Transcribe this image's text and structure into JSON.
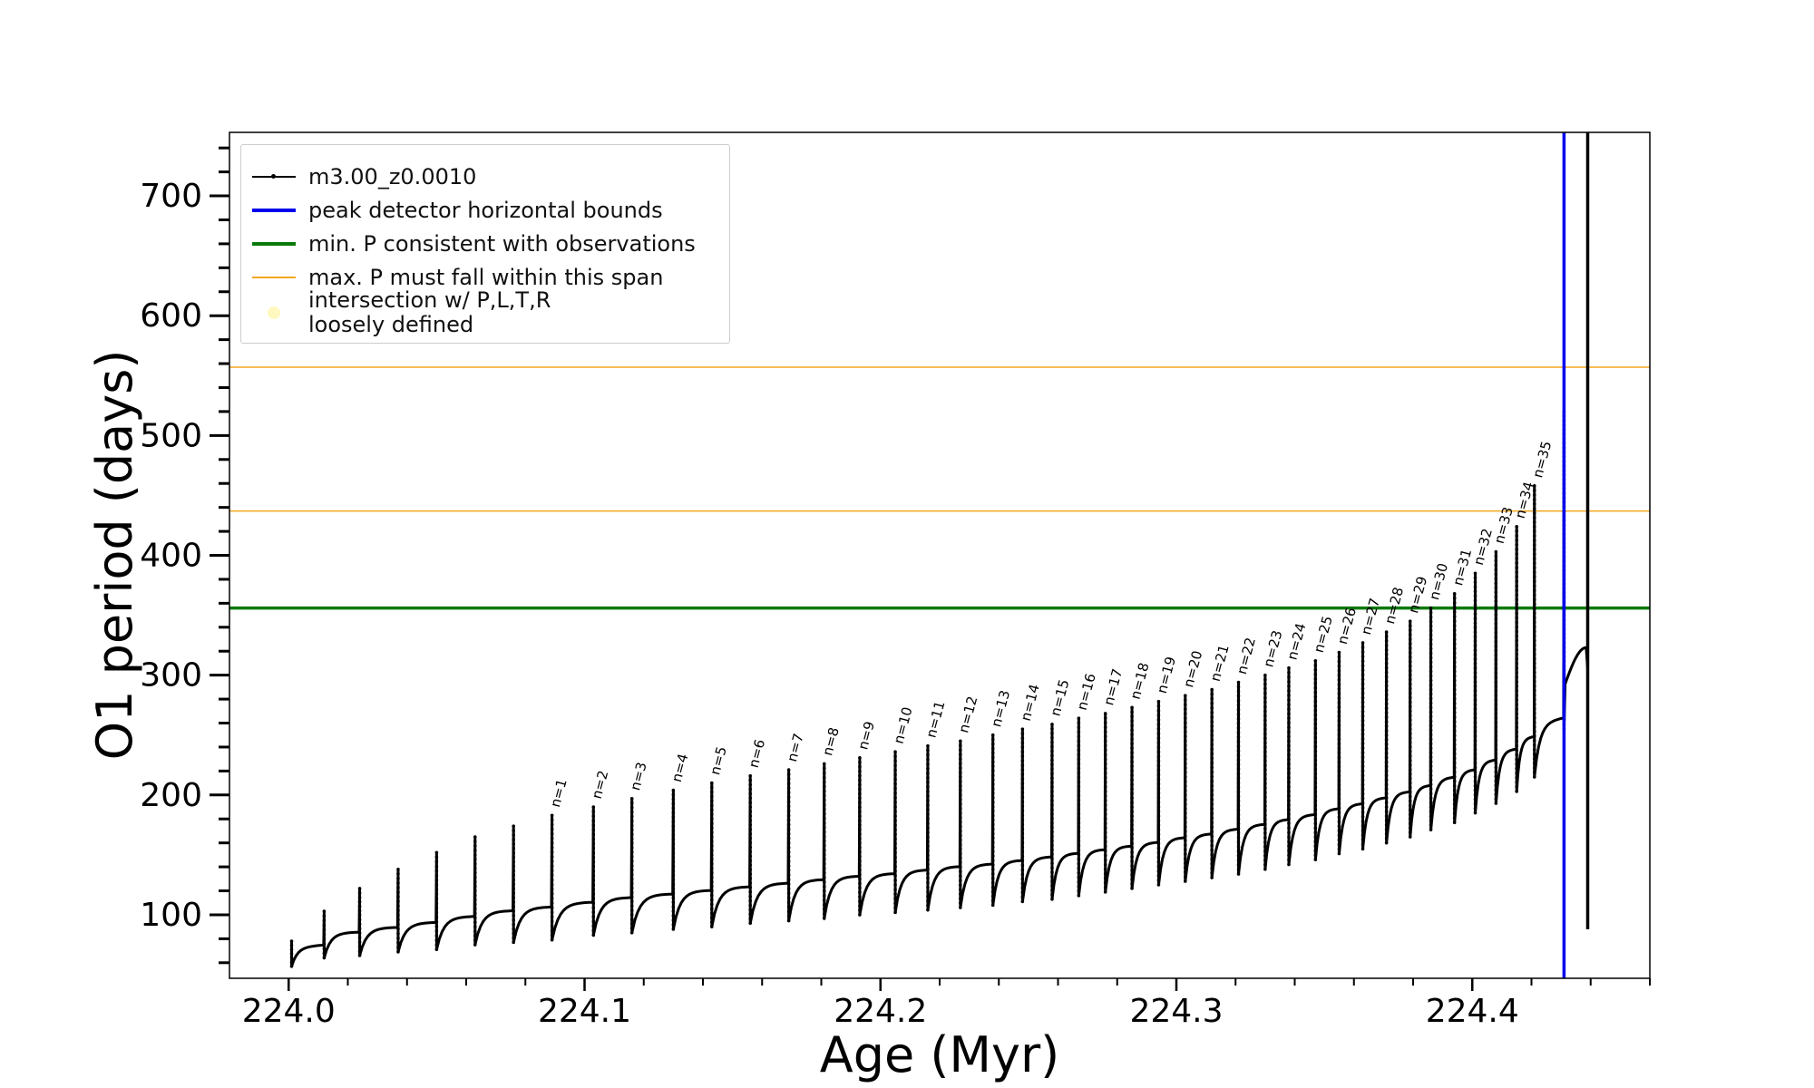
{
  "chart_data": {
    "type": "line",
    "xlabel": "Age (Myr)",
    "ylabel": "O1 period (days)",
    "xlim": [
      223.98,
      224.46
    ],
    "ylim": [
      47,
      753
    ],
    "x_ticks": [
      "224.0",
      "224.1",
      "224.2",
      "224.3",
      "224.4"
    ],
    "y_ticks": [
      "100",
      "200",
      "300",
      "400",
      "500",
      "600",
      "700"
    ],
    "grid": false,
    "legend_position": "top-left",
    "legend": [
      {
        "label": "m3.00_z0.0010",
        "style": "line-marker",
        "color": "#000000"
      },
      {
        "label": "peak detector horizontal bounds",
        "style": "line",
        "color": "#0000ee"
      },
      {
        "label": "min. P consistent with observations",
        "style": "line",
        "color": "#0a7a0a"
      },
      {
        "label": "max. P must fall within this span",
        "style": "thin-line",
        "color": "#f5a623"
      },
      {
        "label": "intersection w/ P,L,T,R\nloosely defined",
        "style": "dot",
        "color": "#fff8c0"
      }
    ],
    "horizontal_lines": [
      {
        "y": 557,
        "color": "#f5a623",
        "width": 1.5
      },
      {
        "y": 437,
        "color": "#f5a623",
        "width": 1.5
      },
      {
        "y": 356,
        "color": "#0a7a0a",
        "width": 3.5
      }
    ],
    "vertical_lines": [
      {
        "x": 224.431,
        "y_range": [
          47,
          753
        ],
        "color": "#0000ee",
        "width": 3.5
      }
    ],
    "series": [
      {
        "name": "m3.00_z0.0010",
        "color": "#000000",
        "pulses": [
          {
            "x": 224.001,
            "trough": 57,
            "base": 73,
            "peak": 78
          },
          {
            "x": 224.012,
            "trough": 64,
            "base": 85,
            "peak": 103
          },
          {
            "x": 224.024,
            "trough": 66,
            "base": 89,
            "peak": 122
          },
          {
            "x": 224.037,
            "trough": 69,
            "base": 93,
            "peak": 138
          },
          {
            "x": 224.05,
            "trough": 71,
            "base": 98,
            "peak": 152
          },
          {
            "x": 224.063,
            "trough": 75,
            "base": 103,
            "peak": 165
          },
          {
            "x": 224.076,
            "trough": 77,
            "base": 106,
            "peak": 174
          },
          {
            "x": 224.089,
            "trough": 79,
            "base": 110,
            "peak": 183,
            "label": "n=1"
          },
          {
            "x": 224.103,
            "trough": 83,
            "base": 114,
            "peak": 190,
            "label": "n=2"
          },
          {
            "x": 224.116,
            "trough": 85,
            "base": 117,
            "peak": 197,
            "label": "n=3"
          },
          {
            "x": 224.13,
            "trough": 88,
            "base": 120,
            "peak": 204,
            "label": "n=4"
          },
          {
            "x": 224.143,
            "trough": 90,
            "base": 123,
            "peak": 210,
            "label": "n=5"
          },
          {
            "x": 224.156,
            "trough": 93,
            "base": 126,
            "peak": 216,
            "label": "n=6"
          },
          {
            "x": 224.169,
            "trough": 95,
            "base": 129,
            "peak": 221,
            "label": "n=7"
          },
          {
            "x": 224.181,
            "trough": 97,
            "base": 132,
            "peak": 226,
            "label": "n=8"
          },
          {
            "x": 224.193,
            "trough": 100,
            "base": 134,
            "peak": 231,
            "label": "n=9"
          },
          {
            "x": 224.205,
            "trough": 102,
            "base": 137,
            "peak": 236,
            "label": "n=10"
          },
          {
            "x": 224.216,
            "trough": 104,
            "base": 140,
            "peak": 241,
            "label": "n=11"
          },
          {
            "x": 224.227,
            "trough": 106,
            "base": 142,
            "peak": 245,
            "label": "n=12"
          },
          {
            "x": 224.238,
            "trough": 108,
            "base": 145,
            "peak": 250,
            "label": "n=13"
          },
          {
            "x": 224.248,
            "trough": 111,
            "base": 148,
            "peak": 255,
            "label": "n=14"
          },
          {
            "x": 224.258,
            "trough": 113,
            "base": 151,
            "peak": 259,
            "label": "n=15"
          },
          {
            "x": 224.267,
            "trough": 116,
            "base": 154,
            "peak": 264,
            "label": "n=16"
          },
          {
            "x": 224.276,
            "trough": 119,
            "base": 157,
            "peak": 268,
            "label": "n=17"
          },
          {
            "x": 224.285,
            "trough": 122,
            "base": 160,
            "peak": 273,
            "label": "n=18"
          },
          {
            "x": 224.294,
            "trough": 125,
            "base": 164,
            "peak": 278,
            "label": "n=19"
          },
          {
            "x": 224.303,
            "trough": 128,
            "base": 167,
            "peak": 283,
            "label": "n=20"
          },
          {
            "x": 224.312,
            "trough": 131,
            "base": 171,
            "peak": 288,
            "label": "n=21"
          },
          {
            "x": 224.321,
            "trough": 134,
            "base": 175,
            "peak": 294,
            "label": "n=22"
          },
          {
            "x": 224.33,
            "trough": 138,
            "base": 179,
            "peak": 300,
            "label": "n=23"
          },
          {
            "x": 224.338,
            "trough": 142,
            "base": 183,
            "peak": 306,
            "label": "n=24"
          },
          {
            "x": 224.347,
            "trough": 146,
            "base": 188,
            "peak": 312,
            "label": "n=25"
          },
          {
            "x": 224.355,
            "trough": 151,
            "base": 192,
            "peak": 319,
            "label": "n=26"
          },
          {
            "x": 224.363,
            "trough": 155,
            "base": 197,
            "peak": 327,
            "label": "n=27"
          },
          {
            "x": 224.371,
            "trough": 160,
            "base": 202,
            "peak": 336,
            "label": "n=28"
          },
          {
            "x": 224.379,
            "trough": 165,
            "base": 207,
            "peak": 345,
            "label": "n=29"
          },
          {
            "x": 224.386,
            "trough": 171,
            "base": 214,
            "peak": 356,
            "label": "n=30"
          },
          {
            "x": 224.394,
            "trough": 177,
            "base": 220,
            "peak": 368,
            "label": "n=31"
          },
          {
            "x": 224.401,
            "trough": 185,
            "base": 228,
            "peak": 385,
            "label": "n=32"
          },
          {
            "x": 224.408,
            "trough": 193,
            "base": 237,
            "peak": 403,
            "label": "n=33"
          },
          {
            "x": 224.415,
            "trough": 203,
            "base": 247,
            "peak": 424,
            "label": "n=34"
          },
          {
            "x": 224.421,
            "trough": 215,
            "base": 260,
            "peak": 458,
            "label": "n=35"
          },
          {
            "x": 224.431,
            "trough": 255,
            "base": 290,
            "peak": 520
          }
        ],
        "tail": {
          "x_start": 224.431,
          "x_peak": 224.4385,
          "y_start": 290,
          "y_peak": 323,
          "x_end": 224.439,
          "y_end": 305
        },
        "final_spike": {
          "x": 224.439,
          "y_low": 88,
          "y_high": 753
        }
      }
    ]
  }
}
